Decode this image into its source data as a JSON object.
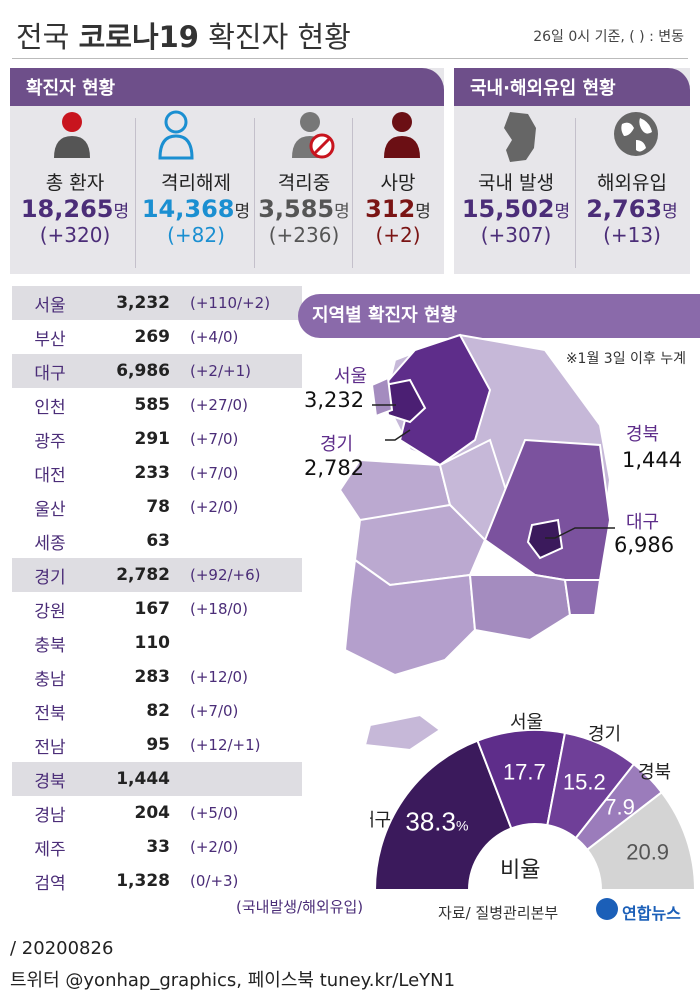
{
  "header": {
    "title_normal_1": "전국 ",
    "title_bold": "코로나19",
    "title_normal_2": " 확진자 현황",
    "basis": "26일  0시 기준, ( ) : 변동"
  },
  "status_panel": {
    "heading": "확진자 현황",
    "items": [
      {
        "label": "총 환자",
        "value": "18,265",
        "unit": "명",
        "change": "(+320)",
        "color": "#4b2d78",
        "icon": "person-icon"
      },
      {
        "label": "격리해제",
        "value": "14,368",
        "unit": "명",
        "change": "(+82)",
        "color": "#1b8fd1",
        "icon": "person-outline-icon"
      },
      {
        "label": "격리중",
        "value": "3,585",
        "unit": "명",
        "change": "(+236)",
        "color": "#555555",
        "icon": "person-blocked-icon"
      },
      {
        "label": "사망",
        "value": "312",
        "unit": "명",
        "change": "(+2)",
        "color": "#7a1414",
        "icon": "person-dark-icon"
      }
    ]
  },
  "origin_panel": {
    "heading": "국내·해외유입 현황",
    "items": [
      {
        "label": "국내 발생",
        "value": "15,502",
        "unit": "명",
        "change": "(+307)",
        "color": "#4b2d78",
        "icon": "korea-map-icon"
      },
      {
        "label": "해외유입",
        "value": "2,763",
        "unit": "명",
        "change": "(+13)",
        "color": "#4b2d78",
        "icon": "globe-icon"
      }
    ]
  },
  "regions": [
    {
      "name": "서울",
      "value": "3,232",
      "change": "(+110/+2)",
      "shade": true
    },
    {
      "name": "부산",
      "value": "269",
      "change": "(+4/0)",
      "shade": false
    },
    {
      "name": "대구",
      "value": "6,986",
      "change": "(+2/+1)",
      "shade": true
    },
    {
      "name": "인천",
      "value": "585",
      "change": "(+27/0)",
      "shade": false
    },
    {
      "name": "광주",
      "value": "291",
      "change": "(+7/0)",
      "shade": false
    },
    {
      "name": "대전",
      "value": "233",
      "change": "(+7/0)",
      "shade": false
    },
    {
      "name": "울산",
      "value": "78",
      "change": "(+2/0)",
      "shade": false
    },
    {
      "name": "세종",
      "value": "63",
      "change": "",
      "shade": false
    },
    {
      "name": "경기",
      "value": "2,782",
      "change": "(+92/+6)",
      "shade": true
    },
    {
      "name": "강원",
      "value": "167",
      "change": "(+18/0)",
      "shade": false
    },
    {
      "name": "충북",
      "value": "110",
      "change": "",
      "shade": false
    },
    {
      "name": "충남",
      "value": "283",
      "change": "(+12/0)",
      "shade": false
    },
    {
      "name": "전북",
      "value": "82",
      "change": "(+7/0)",
      "shade": false
    },
    {
      "name": "전남",
      "value": "95",
      "change": "(+12/+1)",
      "shade": false
    },
    {
      "name": "경북",
      "value": "1,444",
      "change": "",
      "shade": true
    },
    {
      "name": "경남",
      "value": "204",
      "change": "(+5/0)",
      "shade": false
    },
    {
      "name": "제주",
      "value": "33",
      "change": "(+2/0)",
      "shade": false
    },
    {
      "name": "검역",
      "value": "1,328",
      "change": "(0/+3)",
      "shade": false
    }
  ],
  "regions_note": "(국내발생/해외유입)",
  "map": {
    "heading": "지역별 확진자 현황",
    "note": "※1월 3일 이후 누계",
    "labels": [
      {
        "name": "서울",
        "value": "3,232"
      },
      {
        "name": "경기",
        "value": "2,782"
      },
      {
        "name": "경북",
        "value": "1,444"
      },
      {
        "name": "대구",
        "value": "6,986"
      }
    ]
  },
  "chart_data": {
    "type": "pie",
    "title": "비율",
    "unit": "%",
    "categories": [
      "대구",
      "서울",
      "경기",
      "경북",
      ""
    ],
    "values": [
      38.3,
      17.7,
      15.2,
      7.9,
      20.9
    ],
    "value_labels": [
      "38.3",
      "17.7",
      "15.2",
      "7.9",
      "20.9"
    ],
    "colors": [
      "#3b1a5c",
      "#5e2d8a",
      "#6f3f98",
      "#9b7cbb",
      "#d4d4d4"
    ]
  },
  "footer": {
    "source": "자료/ 질병관리본부",
    "agency": "연합뉴스",
    "date": "/ 20200826",
    "sns": "트위터 @yonhap_graphics, 페이스북 tuney.kr/LeYN1"
  }
}
